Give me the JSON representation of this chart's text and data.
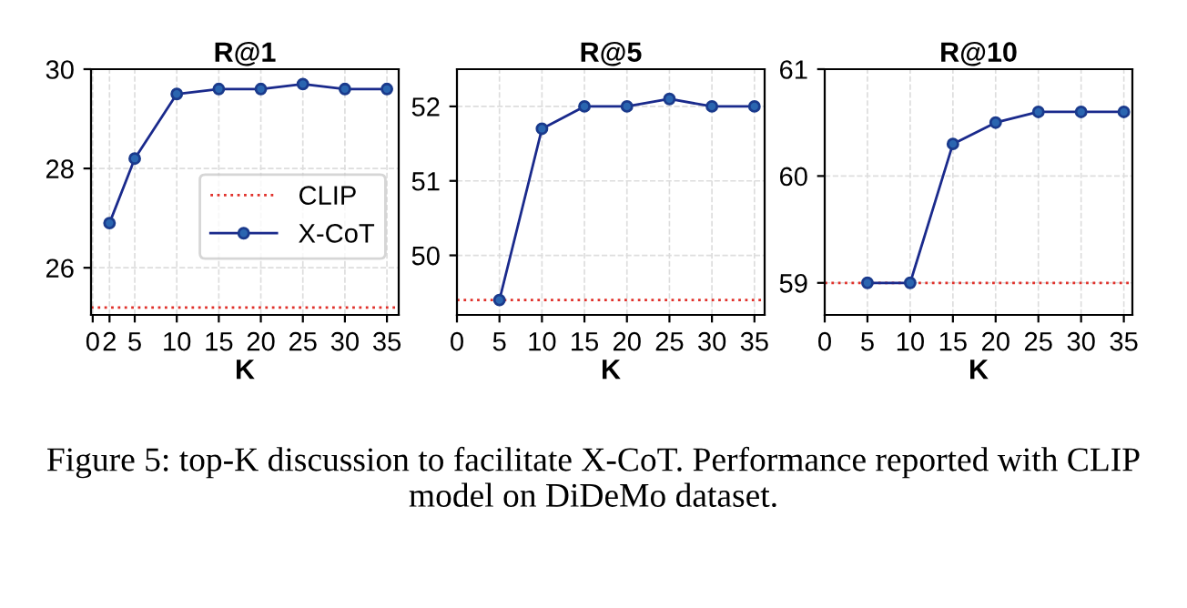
{
  "chart_data": [
    {
      "type": "line",
      "title": "R@1",
      "xlabel": "K",
      "xlim": [
        -0.2,
        36.4
      ],
      "xticks": [
        0,
        2,
        5,
        10,
        15,
        20,
        25,
        30,
        35
      ],
      "ylim": [
        25.05,
        30
      ],
      "yticks": [
        26,
        28,
        30
      ],
      "grid": true,
      "legend": "right",
      "marker": "circle",
      "line_style": "solid",
      "series": [
        {
          "name": "X-CoT",
          "color": "#1a2a8c",
          "x": [
            2,
            5,
            10,
            15,
            20,
            25,
            30,
            35
          ],
          "values": [
            26.9,
            28.2,
            29.5,
            29.6,
            29.6,
            29.7,
            29.6,
            29.6
          ]
        }
      ],
      "ref_lines": [
        {
          "axis": "y",
          "value": 25.2,
          "label": "CLIP",
          "color": "#e0302a",
          "line_style": "dotted"
        }
      ],
      "annotations": [
        "Figure 5: top-K discussion to facilitate X-CoT. Performance reported with CLIP model on DiDeMo dataset."
      ]
    },
    {
      "type": "line",
      "title": "R@5",
      "xlabel": "K",
      "xlim": [
        0,
        36.2
      ],
      "xticks": [
        0,
        5,
        10,
        15,
        20,
        25,
        30,
        35
      ],
      "ylim": [
        49.2,
        52.5
      ],
      "yticks": [
        50,
        51,
        52
      ],
      "grid": true,
      "marker": "circle",
      "line_style": "solid",
      "series": [
        {
          "color": "#1a2a8c",
          "x": [
            5,
            10,
            15,
            20,
            25,
            30,
            35
          ],
          "values": [
            49.4,
            51.7,
            52.0,
            52.0,
            52.1,
            52.0,
            52.0
          ]
        }
      ],
      "ref_lines": [
        {
          "axis": "y",
          "value": 49.4,
          "color": "#e0302a",
          "line_style": "dotted"
        }
      ]
    },
    {
      "type": "line",
      "title": "R@10",
      "xlabel": "K",
      "xlim": [
        0,
        36
      ],
      "xticks": [
        0,
        5,
        10,
        15,
        20,
        25,
        30,
        35
      ],
      "ylim": [
        58.7,
        61
      ],
      "yticks": [
        59,
        60,
        61
      ],
      "grid": true,
      "marker": "circle",
      "line_style": "solid",
      "series": [
        {
          "color": "#1a2a8c",
          "x": [
            5,
            10,
            15,
            20,
            25,
            30,
            35
          ],
          "values": [
            59.0,
            59.0,
            60.3,
            60.5,
            60.6,
            60.6,
            60.6
          ]
        }
      ],
      "ref_lines": [
        {
          "axis": "y",
          "value": 59.0,
          "color": "#e0302a",
          "line_style": "dotted"
        }
      ]
    }
  ]
}
